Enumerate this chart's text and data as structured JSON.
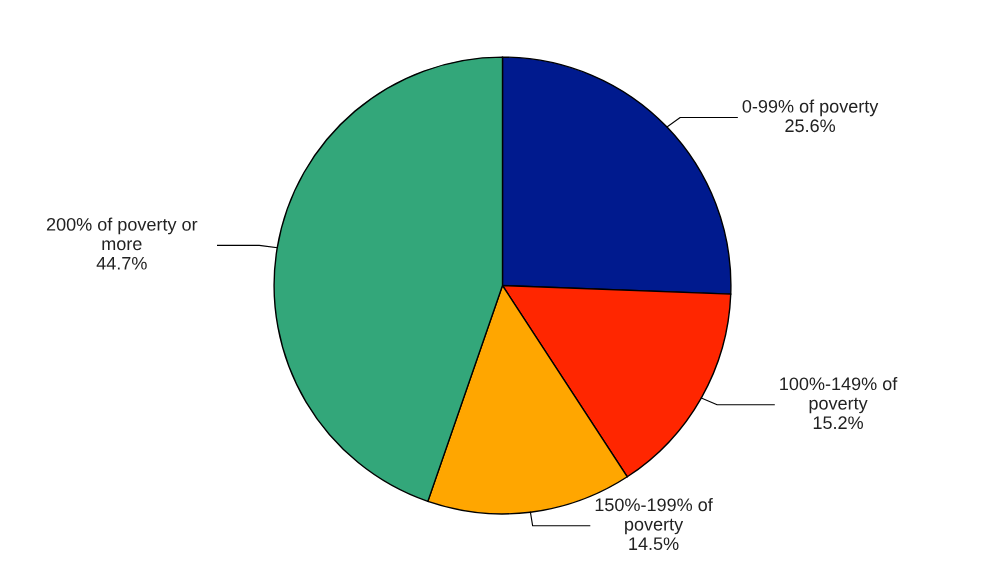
{
  "chart_data": {
    "type": "pie",
    "categories": [
      "0-99% of poverty",
      "100%-149% of\npoverty",
      "150%-199% of\npoverty",
      "200% of poverty or\nmore"
    ],
    "values": [
      25.6,
      15.2,
      14.5,
      44.7
    ],
    "value_labels": [
      "25.6%",
      "15.2%",
      "14.5%",
      "44.7%"
    ],
    "colors": [
      "#001a8e",
      "#ff2600",
      "#ffa600",
      "#33a77a"
    ]
  }
}
